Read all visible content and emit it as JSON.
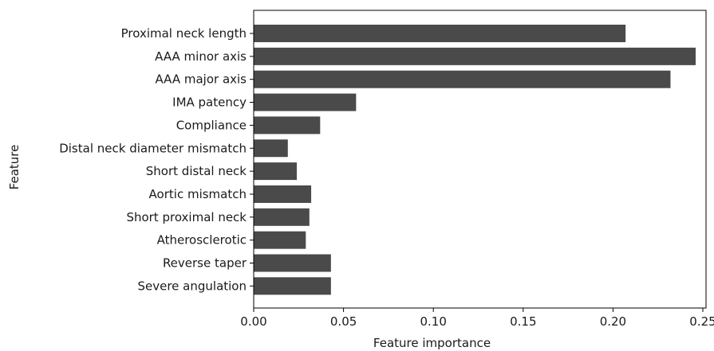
{
  "chart_data": {
    "type": "bar",
    "orientation": "horizontal",
    "categories": [
      "Proximal neck length",
      "AAA minor axis",
      "AAA major axis",
      "IMA patency",
      "Compliance",
      "Distal neck diameter mismatch",
      "Short distal neck",
      "Aortic mismatch",
      "Short proximal neck",
      "Atherosclerotic",
      "Reverse taper",
      "Severe angulation"
    ],
    "values": [
      0.207,
      0.246,
      0.232,
      0.057,
      0.037,
      0.019,
      0.024,
      0.032,
      0.031,
      0.029,
      0.043,
      0.043
    ],
    "xlabel": "Feature importance",
    "ylabel": "Feature",
    "xlim": [
      0,
      0.25
    ],
    "xticks": [
      "0.00",
      "0.05",
      "0.10",
      "0.15",
      "0.20",
      "0.25"
    ],
    "grid": false,
    "bar_color": "#4a4a4a"
  }
}
